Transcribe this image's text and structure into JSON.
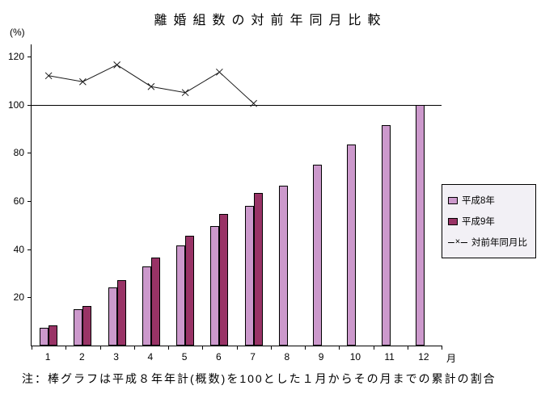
{
  "note": "注：棒グラフは平成８年年計(概数)を100とした１月からその月までの累計の割合",
  "chart_data": {
    "type": "bar",
    "title": "離婚組数の対前年同月比較",
    "ylabel": "(%)",
    "xlabel": "月",
    "categories": [
      "1",
      "2",
      "3",
      "4",
      "5",
      "6",
      "7",
      "8",
      "9",
      "10",
      "11",
      "12"
    ],
    "series": [
      {
        "key": "h8",
        "name": "平成8年",
        "type": "bar",
        "color": "#cc99cc",
        "values": [
          7.5,
          15,
          24,
          33,
          41.5,
          49.5,
          58,
          66.5,
          75,
          83.5,
          91.5,
          100
        ]
      },
      {
        "key": "h9",
        "name": "平成9年",
        "type": "bar",
        "color": "#993366",
        "values": [
          8.5,
          16.5,
          27,
          36.5,
          45.5,
          54.5,
          63.5,
          null,
          null,
          null,
          null,
          null
        ]
      },
      {
        "key": "ratio",
        "name": "対前年同月比",
        "type": "line",
        "color": "#1a1a1a",
        "marker": "×",
        "values": [
          112,
          109.5,
          116.5,
          107.5,
          105,
          113.5,
          100.5,
          null,
          null,
          null,
          null,
          null
        ]
      }
    ],
    "ylim": [
      0,
      125
    ],
    "yticks": [
      20,
      40,
      60,
      80,
      100,
      120
    ],
    "reference_line": 100,
    "grid": false,
    "legend_position": "right"
  }
}
